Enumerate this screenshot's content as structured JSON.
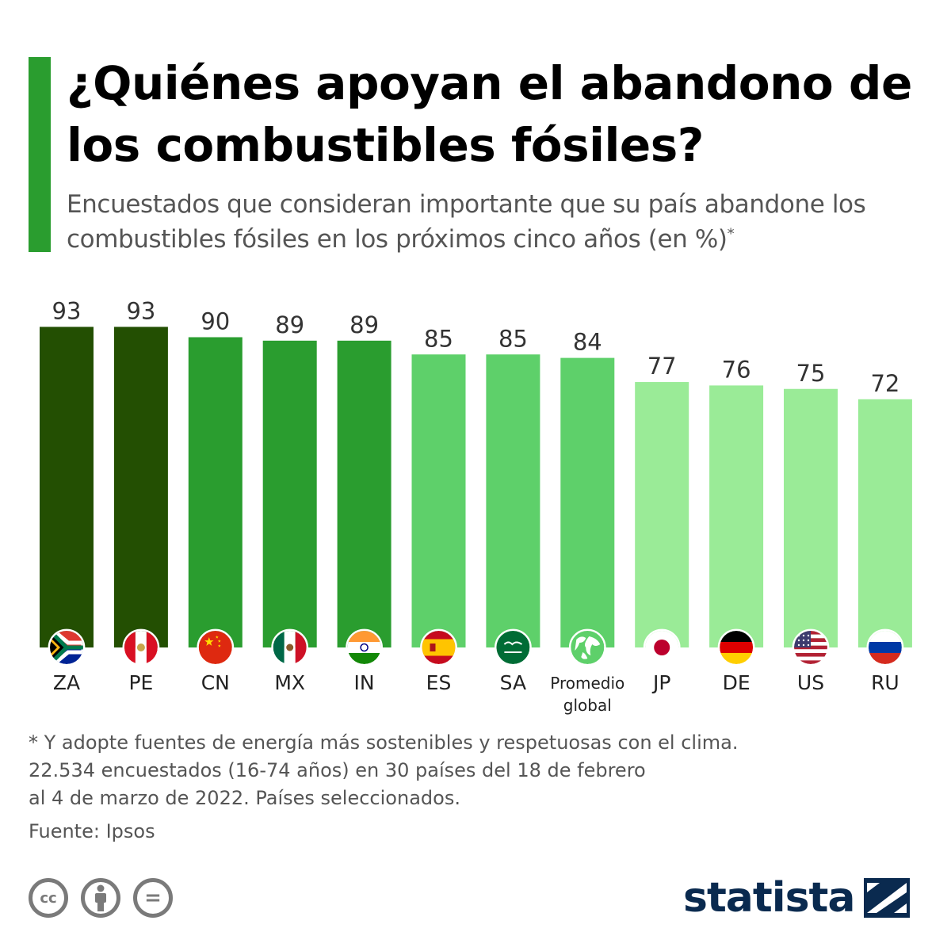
{
  "header": {
    "title": "¿Quiénes apoyan el abandono de los combustibles fósiles?",
    "subtitle": "Encuestados que consideran importante que su país abandone los combustibles fósiles en los próximos cinco años (en %)",
    "subtitle_marker": "*",
    "accent_color": "#2a9d2f"
  },
  "chart_data": {
    "type": "bar",
    "title": "¿Quiénes apoyan el abandono de los combustibles fósiles?",
    "subtitle": "Encuestados que consideran importante que su país abandone los combustibles fósiles en los próximos cinco años (en %)",
    "categories": [
      "ZA",
      "PE",
      "CN",
      "MX",
      "IN",
      "ES",
      "SA",
      "Promedio global",
      "JP",
      "DE",
      "US",
      "RU"
    ],
    "values": [
      93,
      93,
      90,
      89,
      89,
      85,
      85,
      84,
      77,
      76,
      75,
      72
    ],
    "bar_colors": [
      "#234f02",
      "#234f02",
      "#2a9d2f",
      "#2a9d2f",
      "#2a9d2f",
      "#5ed06a",
      "#5ed06a",
      "#5ed06a",
      "#9aeb97",
      "#9aeb97",
      "#9aeb97",
      "#9aeb97"
    ],
    "icons": [
      "flag-za-icon",
      "flag-pe-icon",
      "flag-cn-icon",
      "flag-mx-icon",
      "flag-in-icon",
      "flag-es-icon",
      "flag-sa-icon",
      "globe-icon",
      "flag-jp-icon",
      "flag-de-icon",
      "flag-us-icon",
      "flag-ru-icon"
    ],
    "ylim": [
      0,
      100
    ],
    "grid": false,
    "legend": "none",
    "xlabel": "",
    "ylabel": ""
  },
  "footer": {
    "notes": [
      "* Y adopte fuentes de energía más sostenibles y respetuosas con el clima.",
      "22.534 encuestados (16-74 años) en 30 países del 18 de febrero",
      "al 4 de marzo de 2022. Países seleccionados."
    ],
    "source": "Fuente: Ipsos",
    "license_icons": [
      "creative-commons-icon",
      "attribution-icon",
      "no-derivatives-icon"
    ],
    "license_glyphs": [
      "cc",
      "i",
      "="
    ],
    "brand": "statista",
    "brand_color": "#0a2a4f"
  }
}
